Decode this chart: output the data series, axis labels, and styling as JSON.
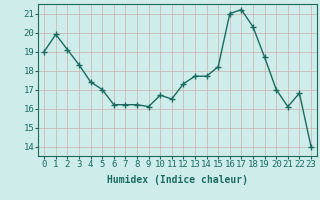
{
  "x": [
    0,
    1,
    2,
    3,
    4,
    5,
    6,
    7,
    8,
    9,
    10,
    11,
    12,
    13,
    14,
    15,
    16,
    17,
    18,
    19,
    20,
    21,
    22,
    23
  ],
  "y": [
    19.0,
    19.9,
    19.1,
    18.3,
    17.4,
    17.0,
    16.2,
    16.2,
    16.2,
    16.1,
    16.7,
    16.5,
    17.3,
    17.7,
    17.7,
    18.2,
    21.0,
    21.2,
    20.3,
    18.7,
    17.0,
    16.1,
    16.8,
    14.0
  ],
  "line_color": "#1a6b5e",
  "marker": "+",
  "marker_size": 4,
  "marker_linewidth": 1.0,
  "bg_color": "#ceecea",
  "grid_color": "#c0d8d6",
  "xlabel": "Humidex (Indice chaleur)",
  "ylim": [
    13.5,
    21.5
  ],
  "yticks": [
    14,
    15,
    16,
    17,
    18,
    19,
    20,
    21
  ],
  "xticks": [
    0,
    1,
    2,
    3,
    4,
    5,
    6,
    7,
    8,
    9,
    10,
    11,
    12,
    13,
    14,
    15,
    16,
    17,
    18,
    19,
    20,
    21,
    22,
    23
  ],
  "xlabel_fontsize": 7,
  "tick_fontsize": 6.5,
  "line_width": 1.0
}
